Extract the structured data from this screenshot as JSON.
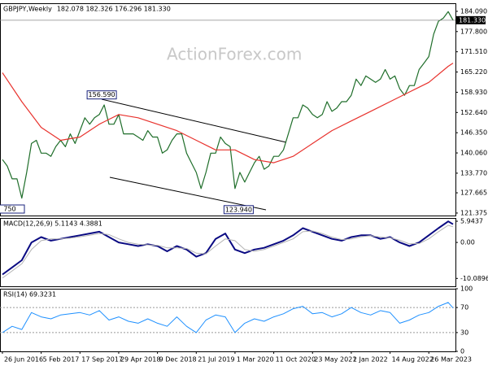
{
  "chart_data": [
    {
      "type": "line",
      "title": "GBPJPY,Weekly",
      "subtitle": "182.078 182.326 176.296 181.330",
      "watermark": "ActionForex.com",
      "xlim": [
        -2,
        374
      ],
      "ylim": [
        120.6,
        186.6
      ],
      "yticks": [
        {
          "value": 184.09,
          "label": "184.090"
        },
        {
          "value": 177.8,
          "label": "177.800"
        },
        {
          "value": 171.51,
          "label": "171.510"
        },
        {
          "value": 165.22,
          "label": "165.220"
        },
        {
          "value": 158.93,
          "label": "158.930"
        },
        {
          "value": 152.64,
          "label": "152.640"
        },
        {
          "value": 146.35,
          "label": "146.350"
        },
        {
          "value": 140.06,
          "label": "140.060"
        },
        {
          "value": 133.77,
          "label": "133.770"
        },
        127.665,
        121.375
      ],
      "series": [
        {
          "color": "#1f6e2a",
          "x": [
            0,
            4,
            8,
            12,
            16,
            20,
            24,
            28,
            32,
            36,
            40,
            44,
            48,
            52,
            56,
            60,
            64,
            68,
            72,
            76,
            80,
            84,
            88,
            92,
            96,
            100,
            104,
            108,
            112,
            116,
            120,
            124,
            128,
            132,
            136,
            140,
            144,
            148,
            152,
            156,
            160,
            164,
            168,
            172,
            176,
            180,
            184,
            188,
            192,
            196,
            200,
            204,
            208,
            212,
            216,
            220,
            224,
            228,
            232,
            236,
            240,
            244,
            248,
            252,
            256,
            260,
            264,
            268,
            272,
            276,
            280,
            284,
            288,
            292,
            296,
            300,
            304,
            308,
            312,
            316,
            320,
            324,
            328,
            332,
            336,
            340,
            344,
            348,
            352,
            356,
            360,
            364,
            368,
            372
          ],
          "values": [
            138,
            136,
            132,
            132,
            126,
            134,
            143,
            144,
            140,
            140,
            139,
            142,
            144,
            142,
            146,
            143,
            147,
            151,
            149,
            151,
            152,
            155,
            149,
            149,
            152,
            146,
            146,
            146,
            145,
            144,
            147,
            145,
            145,
            140,
            141,
            144,
            146,
            146,
            140,
            137,
            134,
            129,
            134,
            140,
            140,
            145,
            143,
            142,
            129,
            134,
            131,
            134,
            137,
            139,
            135,
            136,
            139,
            139,
            141,
            146,
            151,
            151,
            155,
            154,
            152,
            151,
            152,
            156,
            153,
            154,
            156,
            156,
            158,
            163,
            161,
            164,
            163,
            162,
            163,
            166,
            163,
            164,
            160,
            158,
            161,
            161,
            166,
            168,
            170,
            177,
            181,
            182,
            184,
            181.33
          ]
        },
        {
          "color": "#e8322d",
          "x": [
            0,
            16,
            32,
            48,
            64,
            80,
            96,
            112,
            128,
            144,
            160,
            176,
            192,
            208,
            224,
            240,
            256,
            272,
            288,
            304,
            320,
            336,
            352,
            368,
            372
          ],
          "values": [
            165,
            156,
            148,
            144,
            145,
            149,
            152,
            151,
            149,
            147,
            144,
            141,
            141,
            138,
            137,
            139,
            143,
            147,
            150,
            153,
            156,
            159,
            162,
            167,
            168
          ]
        }
      ],
      "last": {
        "value": 181.33,
        "label": "181.330"
      },
      "annotations": [
        {
          "label": "156.590",
          "x": 82,
          "value": 156.59
        },
        {
          "label": "123.940",
          "x": 195,
          "value": 123.94
        },
        {
          "label": "750"
        }
      ]
    },
    {
      "type": "line",
      "title": "MACD(12,26,9) 5.1143 4.3881",
      "xlim": [
        -2,
        374
      ],
      "ylim": [
        -12.3,
        6.86
      ],
      "yticks": [
        5.9437,
        {
          "value": 0,
          "label": "0.00"
        },
        -10.0896
      ],
      "x": [
        0,
        8,
        16,
        24,
        32,
        40,
        48,
        56,
        64,
        72,
        80,
        88,
        96,
        104,
        112,
        120,
        128,
        136,
        144,
        152,
        160,
        168,
        176,
        184,
        192,
        200,
        208,
        216,
        224,
        232,
        240,
        248,
        256,
        264,
        272,
        280,
        288,
        296,
        304,
        312,
        320,
        328,
        336,
        344,
        352,
        360,
        368,
        372
      ],
      "series": [
        {
          "color": "#0a0a82",
          "width": 2,
          "values": [
            -9,
            -7,
            -5,
            0,
            1.5,
            0.5,
            1,
            1.5,
            2,
            2.5,
            3,
            1.5,
            0,
            -0.5,
            -1,
            -0.5,
            -1,
            -2.5,
            -1,
            -2,
            -4,
            -3,
            1,
            2.5,
            -2,
            -3,
            -2,
            -1.5,
            -0.5,
            0.5,
            2,
            4,
            3,
            2,
            1,
            0.5,
            1.5,
            2,
            2,
            1,
            1.5,
            0,
            -1,
            0,
            2,
            4,
            5.9,
            5.11
          ]
        },
        {
          "color": "#b4b4b4",
          "width": 1,
          "values": [
            -10,
            -8,
            -6,
            -2,
            0.5,
            1,
            1,
            1.2,
            1.6,
            2,
            2.5,
            2.2,
            1,
            0,
            -0.5,
            -0.7,
            -0.8,
            -1.5,
            -1.5,
            -1.7,
            -3,
            -3.2,
            -1,
            1,
            0.5,
            -2,
            -2.5,
            -2,
            -1,
            0,
            1,
            3,
            3.2,
            2.5,
            1.5,
            0.8,
            1,
            1.6,
            1.9,
            1.5,
            1.3,
            0.6,
            -0.4,
            -0.3,
            1,
            3,
            4.8,
            4.39
          ]
        }
      ]
    },
    {
      "type": "line",
      "title": "RSI(14) 69.3231",
      "grid": true,
      "xlim": [
        -2,
        374
      ],
      "ylim": [
        0,
        100
      ],
      "yticks": [
        100,
        70,
        30,
        0
      ],
      "xticks": [
        {
          "value": 0,
          "label": "26 Jun 2016"
        },
        {
          "value": 32,
          "label": "5 Feb 2017"
        },
        {
          "value": 64,
          "label": "17 Sep 2017"
        },
        {
          "value": 96,
          "label": "29 Apr 2018"
        },
        {
          "value": 128,
          "label": "9 Dec 2018"
        },
        {
          "value": 160,
          "label": "21 Jul 2019"
        },
        {
          "value": 192,
          "label": "1 Mar 2020"
        },
        {
          "value": 224,
          "label": "11 Oct 2020"
        },
        {
          "value": 256,
          "label": "23 May 2021"
        },
        {
          "value": 288,
          "label": "2 Jan 2022"
        },
        {
          "value": 320,
          "label": "14 Aug 2022"
        },
        {
          "value": 352,
          "label": "26 Mar 2023"
        }
      ],
      "x": [
        0,
        8,
        16,
        24,
        32,
        40,
        48,
        56,
        64,
        72,
        80,
        88,
        96,
        104,
        112,
        120,
        128,
        136,
        144,
        152,
        160,
        168,
        176,
        184,
        192,
        200,
        208,
        216,
        224,
        232,
        240,
        248,
        256,
        264,
        272,
        280,
        288,
        296,
        304,
        312,
        320,
        328,
        336,
        344,
        352,
        360,
        368,
        372
      ],
      "series": [
        {
          "color": "#1e90ff",
          "width": 1,
          "values": [
            30,
            40,
            35,
            62,
            55,
            52,
            58,
            60,
            62,
            58,
            65,
            50,
            55,
            48,
            45,
            52,
            45,
            40,
            55,
            40,
            30,
            50,
            58,
            55,
            30,
            45,
            52,
            48,
            55,
            60,
            68,
            72,
            60,
            62,
            55,
            60,
            70,
            62,
            58,
            65,
            62,
            45,
            50,
            58,
            62,
            72,
            78,
            69.3231
          ]
        }
      ]
    }
  ]
}
